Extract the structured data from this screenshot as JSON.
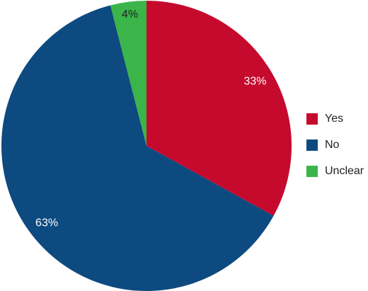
{
  "chart_data": {
    "type": "pie",
    "categories": [
      "Yes",
      "No",
      "Unclear"
    ],
    "values": [
      33,
      63,
      4
    ],
    "value_labels": [
      "33%",
      "63%",
      "4%"
    ],
    "colors": [
      "#c50a2e",
      "#0d4a80",
      "#3bb54a"
    ],
    "legend": "right"
  }
}
